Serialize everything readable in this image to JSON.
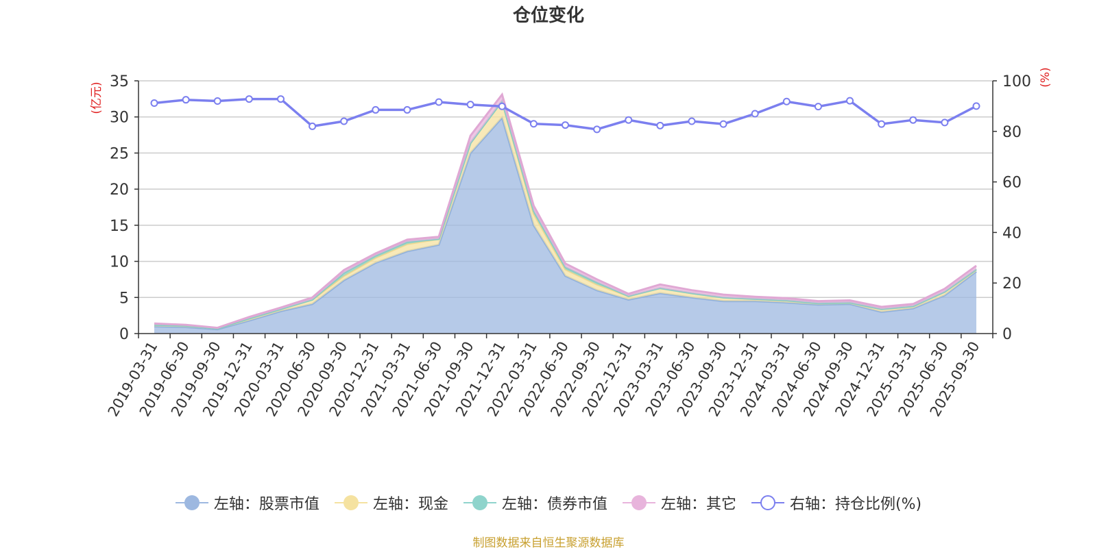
{
  "chart_data": {
    "type": "area",
    "title": "仓位变化",
    "y_left_label": "(亿元)",
    "y_right_label": "(%)",
    "y_left_lim": [
      0,
      35
    ],
    "y_left_ticks": [
      0,
      5,
      10,
      15,
      20,
      25,
      30,
      35
    ],
    "y_right_lim": [
      0,
      100
    ],
    "y_right_ticks": [
      0,
      20,
      40,
      60,
      80,
      100
    ],
    "grid": true,
    "stacked": true,
    "categories": [
      "2019-03-31",
      "2019-06-30",
      "2019-09-30",
      "2019-12-31",
      "2020-03-31",
      "2020-06-30",
      "2020-09-30",
      "2020-12-31",
      "2021-03-31",
      "2021-06-30",
      "2021-09-30",
      "2021-12-31",
      "2022-03-31",
      "2022-06-30",
      "2022-09-30",
      "2022-12-31",
      "2023-03-31",
      "2023-06-30",
      "2023-09-30",
      "2023-12-31",
      "2024-03-31",
      "2024-06-30",
      "2024-09-30",
      "2024-12-31",
      "2025-03-31",
      "2025-06-30",
      "2025-09-30"
    ],
    "series": [
      {
        "name": "左轴：股票市值",
        "axis": "left",
        "color": "#9db8e0",
        "values": [
          1.0,
          0.9,
          0.6,
          1.8,
          3.1,
          4.1,
          7.4,
          9.8,
          11.4,
          12.3,
          25.0,
          29.9,
          15.0,
          8.0,
          6.0,
          4.7,
          5.6,
          5.0,
          4.5,
          4.5,
          4.3,
          4.0,
          4.1,
          3.0,
          3.5,
          5.3,
          8.6
        ]
      },
      {
        "name": "左轴：现金",
        "axis": "left",
        "color": "#f5e2a0",
        "values": [
          0.2,
          0.2,
          0.1,
          0.3,
          0.3,
          0.6,
          0.6,
          0.7,
          1.0,
          0.8,
          1.4,
          2.3,
          1.6,
          0.9,
          0.8,
          0.5,
          0.7,
          0.6,
          0.5,
          0.3,
          0.3,
          0.2,
          0.2,
          0.4,
          0.3,
          0.5,
          0.3
        ]
      },
      {
        "name": "左轴：债券市值",
        "axis": "left",
        "color": "#8fd4cc",
        "values": [
          0,
          0,
          0,
          0,
          0,
          0,
          0.4,
          0.3,
          0.3,
          0.0,
          0,
          0,
          0.4,
          0.3,
          0.3,
          0,
          0,
          0,
          0,
          0,
          0,
          0,
          0,
          0,
          0,
          0,
          0
        ]
      },
      {
        "name": "左轴：其它",
        "axis": "left",
        "color": "#e8b4dc",
        "values": [
          0.2,
          0.1,
          0.1,
          0.2,
          0.2,
          0.3,
          0.4,
          0.3,
          0.3,
          0.3,
          1.0,
          0.9,
          0.7,
          0.5,
          0.4,
          0.3,
          0.5,
          0.4,
          0.4,
          0.3,
          0.3,
          0.3,
          0.3,
          0.3,
          0.3,
          0.4,
          0.5
        ]
      },
      {
        "name": "右轴：持仓比例(%)",
        "axis": "right",
        "color": "#7b7fef",
        "values": [
          91.2,
          92.5,
          92.0,
          92.8,
          92.8,
          82.0,
          84.0,
          88.5,
          88.5,
          91.6,
          90.6,
          89.9,
          83.0,
          82.5,
          80.8,
          84.5,
          82.3,
          84.0,
          82.9,
          87.0,
          91.8,
          89.8,
          92.1,
          82.9,
          84.5,
          83.5,
          90.0
        ]
      }
    ]
  },
  "legend": [
    {
      "label": "左轴：股票市值",
      "color": "#9db8e0",
      "hollow": false
    },
    {
      "label": "左轴：现金",
      "color": "#f5e2a0",
      "hollow": false
    },
    {
      "label": "左轴：债券市值",
      "color": "#8fd4cc",
      "hollow": false
    },
    {
      "label": "左轴：其它",
      "color": "#e8b4dc",
      "hollow": false
    },
    {
      "label": "右轴：持仓比例(%)",
      "color": "#7b7fef",
      "hollow": true
    }
  ],
  "source": "制图数据来自恒生聚源数据库"
}
